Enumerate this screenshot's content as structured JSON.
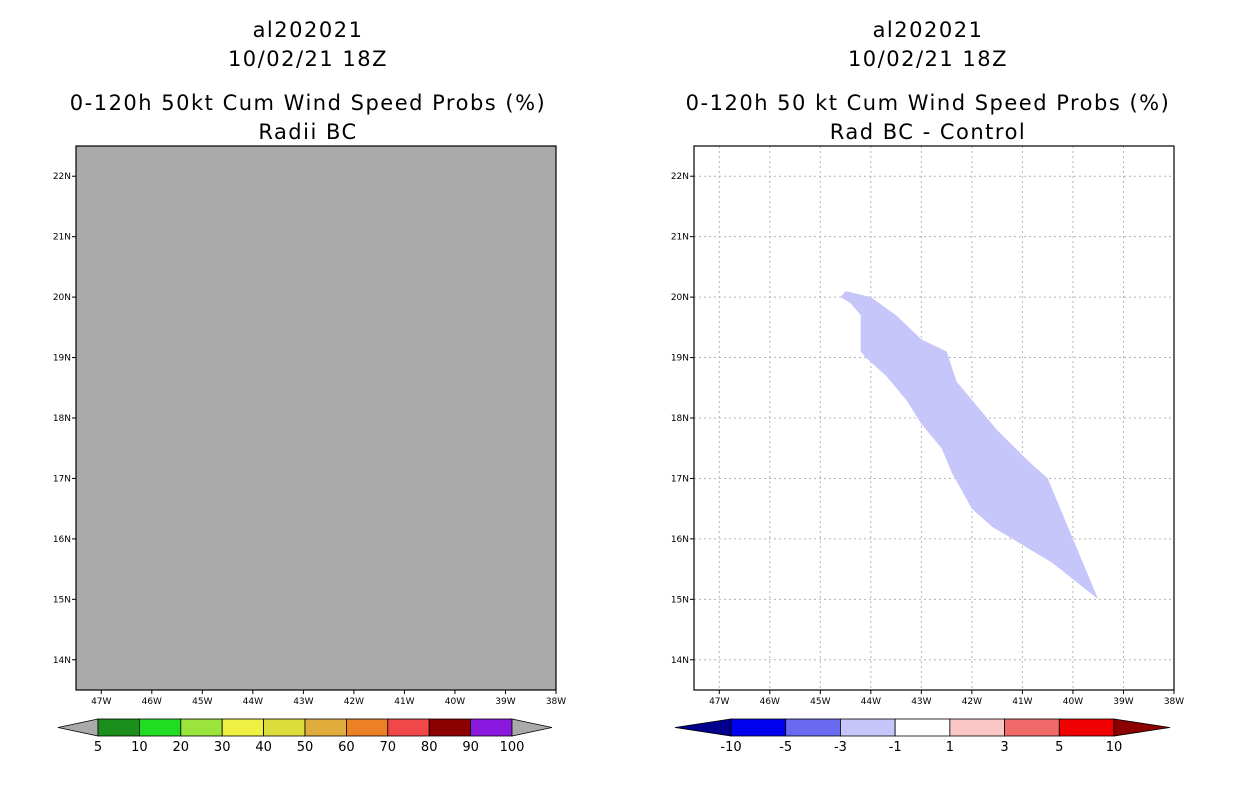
{
  "left_panel": {
    "title_lines": [
      "al202021",
      "10/02/21 18Z",
      "0-120h 50kt Cum Wind Speed Probs (%)",
      "Radii BC"
    ],
    "background_color": "#aaaaaa",
    "lat_labels": [
      "22N",
      "21N",
      "20N",
      "19N",
      "18N",
      "17N",
      "16N",
      "15N",
      "14N"
    ],
    "lon_labels": [
      "47W",
      "46W",
      "45W",
      "44W",
      "43W",
      "42W",
      "41W",
      "40W",
      "39W",
      "38W"
    ],
    "colorbar": {
      "labels": [
        "5",
        "10",
        "20",
        "30",
        "40",
        "50",
        "60",
        "70",
        "80",
        "90",
        "100"
      ],
      "colors": [
        "#aaaaaa",
        "#1c8e1c",
        "#22dc22",
        "#9be43c",
        "#f0f044",
        "#dcdc3c",
        "#e0ac3c",
        "#ec8024",
        "#f04848",
        "#8c0000",
        "#8a18de",
        "#aaaaaa"
      ]
    }
  },
  "right_panel": {
    "title_lines": [
      "al202021",
      "10/02/21 18Z",
      "0-120h 50 kt Cum Wind Speed Probs (%)",
      "Rad BC - Control"
    ],
    "lat_labels": [
      "22N",
      "21N",
      "20N",
      "19N",
      "18N",
      "17N",
      "16N",
      "15N",
      "14N"
    ],
    "lon_labels": [
      "47W",
      "46W",
      "45W",
      "44W",
      "43W",
      "42W",
      "41W",
      "40W",
      "39W",
      "38W"
    ],
    "shaded_region": {
      "fill_color": "#c6c6fa",
      "category": "-3 to -1",
      "outline": [
        [
          -44.6,
          20.0
        ],
        [
          -44.5,
          20.1
        ],
        [
          -44.0,
          20.0
        ],
        [
          -43.5,
          19.7
        ],
        [
          -43.0,
          19.3
        ],
        [
          -42.5,
          19.1
        ],
        [
          -42.3,
          18.6
        ],
        [
          -41.9,
          18.2
        ],
        [
          -41.5,
          17.8
        ],
        [
          -40.9,
          17.3
        ],
        [
          -40.5,
          17.0
        ],
        [
          -40.1,
          16.2
        ],
        [
          -39.8,
          15.6
        ],
        [
          -39.5,
          15.0
        ],
        [
          -39.8,
          15.2
        ],
        [
          -40.4,
          15.6
        ],
        [
          -41.0,
          15.9
        ],
        [
          -41.6,
          16.2
        ],
        [
          -42.0,
          16.5
        ],
        [
          -42.4,
          17.1
        ],
        [
          -42.6,
          17.5
        ],
        [
          -43.0,
          17.9
        ],
        [
          -43.3,
          18.3
        ],
        [
          -43.7,
          18.7
        ],
        [
          -44.1,
          19.0
        ],
        [
          -44.2,
          19.1
        ],
        [
          -44.2,
          19.5
        ],
        [
          -44.2,
          19.7
        ],
        [
          -44.4,
          19.9
        ]
      ]
    },
    "colorbar": {
      "labels": [
        "-10",
        "-5",
        "-3",
        "-1",
        "1",
        "3",
        "5",
        "10"
      ],
      "colors": [
        "#00008c",
        "#0000f0",
        "#6a6af0",
        "#c6c6fa",
        "#ffffff",
        "#fac6c6",
        "#f06a6a",
        "#f00000",
        "#8c0000"
      ]
    }
  },
  "map_extent": {
    "lon_min": -47.5,
    "lon_max": -38.0,
    "lat_min": 13.5,
    "lat_max": 22.5
  }
}
